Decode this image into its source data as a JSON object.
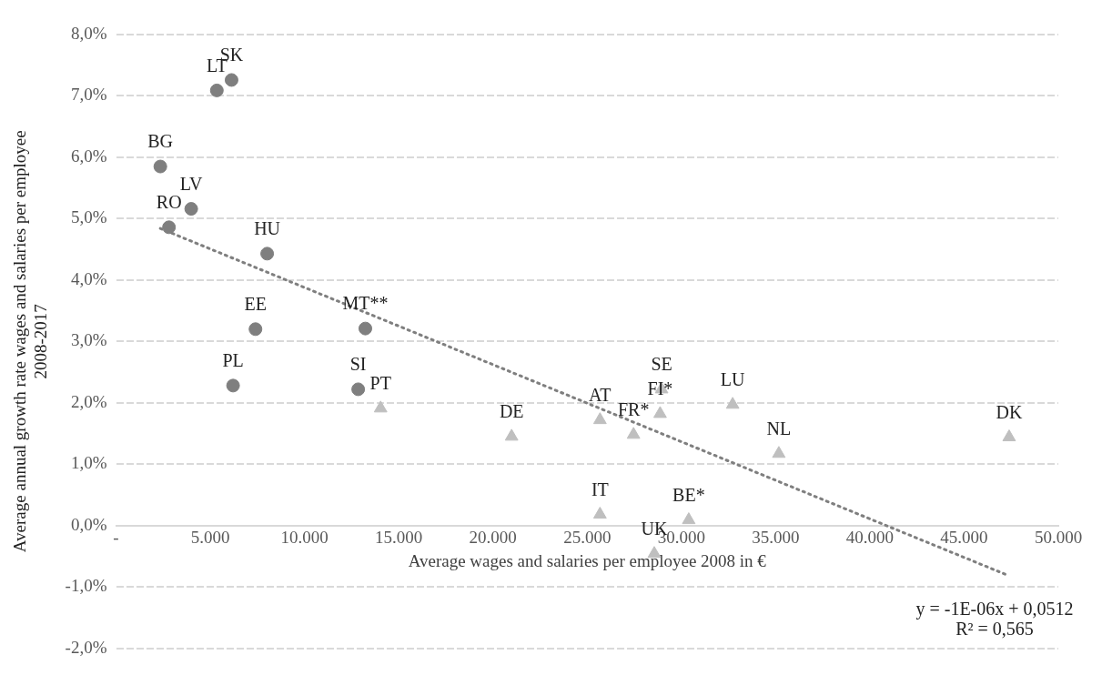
{
  "chart_data": {
    "type": "scatter",
    "xlabel": "Average wages and salaries per employee 2008 in €",
    "ylabel": "Average annual growth rate wages and salaries per employee\n2008-2017",
    "xlim": [
      0,
      50000
    ],
    "xticks": [
      {
        "value": 0,
        "label": "-"
      },
      {
        "value": 5000,
        "label": "5.000"
      },
      {
        "value": 10000,
        "label": "10.000"
      },
      {
        "value": 15000,
        "label": "15.000"
      },
      {
        "value": 20000,
        "label": "20.000"
      },
      {
        "value": 25000,
        "label": "25.000"
      },
      {
        "value": 30000,
        "label": "30.000"
      },
      {
        "value": 35000,
        "label": "35.000"
      },
      {
        "value": 40000,
        "label": "40.000"
      },
      {
        "value": 45000,
        "label": "45.000"
      },
      {
        "value": 50000,
        "label": "50.000"
      }
    ],
    "ylim": [
      -2,
      8
    ],
    "yticks": [
      {
        "value": -2,
        "label": "-2,0%"
      },
      {
        "value": -1,
        "label": "-1,0%"
      },
      {
        "value": 0,
        "label": "0,0%"
      },
      {
        "value": 1,
        "label": "1,0%"
      },
      {
        "value": 2,
        "label": "2,0%"
      },
      {
        "value": 3,
        "label": "3,0%"
      },
      {
        "value": 4,
        "label": "4,0%"
      },
      {
        "value": 5,
        "label": "5,0%"
      },
      {
        "value": 6,
        "label": "6,0%"
      },
      {
        "value": 7,
        "label": "7,0%"
      },
      {
        "value": 8,
        "label": "8,0%"
      }
    ],
    "grid": "y",
    "legend": false,
    "series": [
      {
        "marker": "circle",
        "color": "#7f7f7f",
        "x": [
          5350,
          6130,
          2350,
          3990,
          2810,
          8020,
          7400,
          13230,
          6210,
          12850
        ],
        "values": [
          7.09,
          7.26,
          5.85,
          5.16,
          4.86,
          4.43,
          3.2,
          3.21,
          2.28,
          2.22
        ]
      },
      {
        "marker": "triangle",
        "color": "#bfbfbf",
        "x": [
          14040,
          20990,
          25680,
          27460,
          28870,
          28950,
          32720,
          35170,
          25680,
          30390,
          28560,
          47390
        ],
        "values": [
          1.91,
          1.45,
          1.72,
          1.48,
          1.82,
          2.22,
          1.97,
          1.17,
          0.18,
          0.09,
          -0.46,
          1.44
        ]
      },
      {
        "type": "line",
        "marker": "none",
        "line_style": "dotted",
        "color": "#7f7f7f",
        "x": [
          2350,
          47390
        ],
        "values": [
          4.84,
          -0.82
        ]
      }
    ],
    "annotations": [
      {
        "text": "LT",
        "x": 5350,
        "y": 7.09
      },
      {
        "text": "SK",
        "x": 6130,
        "y": 7.26
      },
      {
        "text": "BG",
        "x": 2350,
        "y": 5.85
      },
      {
        "text": "LV",
        "x": 3990,
        "y": 5.16
      },
      {
        "text": "RO",
        "x": 2810,
        "y": 4.86
      },
      {
        "text": "HU",
        "x": 8020,
        "y": 4.43
      },
      {
        "text": "EE",
        "x": 7400,
        "y": 3.2
      },
      {
        "text": "MT**",
        "x": 13230,
        "y": 3.21
      },
      {
        "text": "PL",
        "x": 6210,
        "y": 2.28
      },
      {
        "text": "SI",
        "x": 12850,
        "y": 2.22
      },
      {
        "text": "PT",
        "x": 14040,
        "y": 1.91
      },
      {
        "text": "DE",
        "x": 20990,
        "y": 1.45
      },
      {
        "text": "AT",
        "x": 25680,
        "y": 1.72
      },
      {
        "text": "FR*",
        "x": 27460,
        "y": 1.48
      },
      {
        "text": "FI*",
        "x": 28870,
        "y": 1.82
      },
      {
        "text": "SE",
        "x": 28950,
        "y": 2.22
      },
      {
        "text": "LU",
        "x": 32720,
        "y": 1.97
      },
      {
        "text": "NL",
        "x": 35170,
        "y": 1.17
      },
      {
        "text": "IT",
        "x": 25680,
        "y": 0.18
      },
      {
        "text": "BE*",
        "x": 30390,
        "y": 0.09
      },
      {
        "text": "UK",
        "x": 28560,
        "y": -0.46
      },
      {
        "text": "DK",
        "x": 47390,
        "y": 1.44
      },
      "y = -1E-06x + 0,0512",
      "R² = 0,565"
    ]
  }
}
